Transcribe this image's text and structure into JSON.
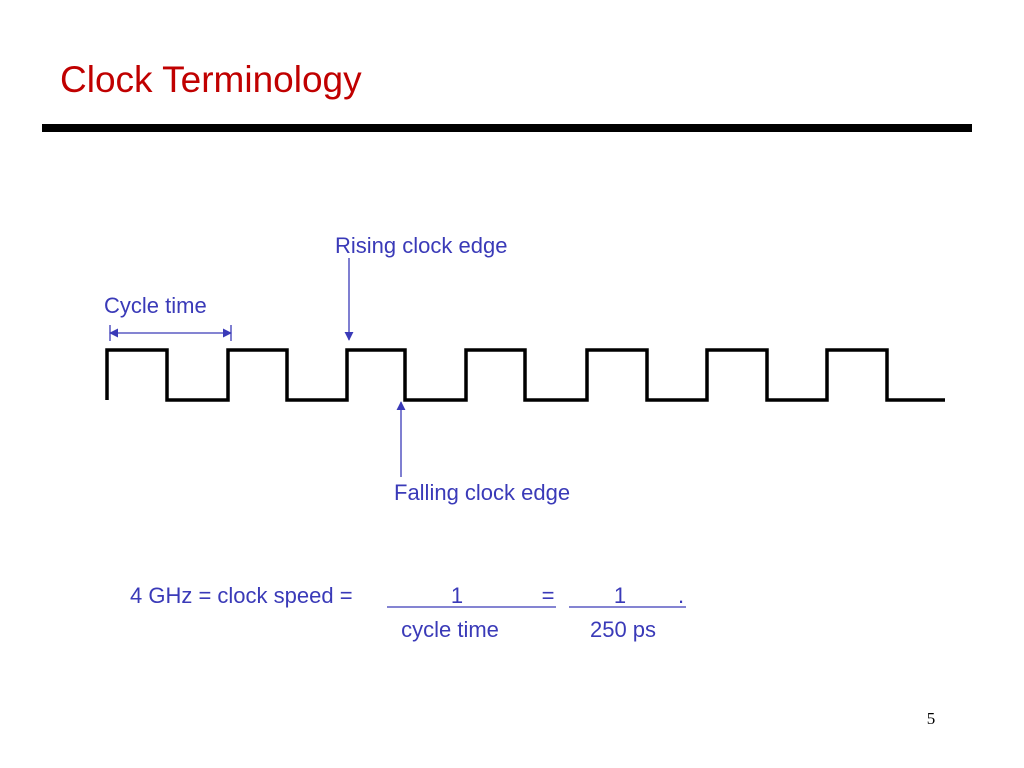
{
  "header": {
    "title": "Clock Terminology"
  },
  "diagram": {
    "rising_label": "Rising clock edge",
    "cycle_label": "Cycle time",
    "falling_label": "Falling clock edge"
  },
  "equation": {
    "lhs": "4 GHz = clock speed =",
    "numerator1": "1",
    "equals": "=",
    "denominator1": "cycle time",
    "numerator2": "1",
    "period": ".",
    "denominator2": "250 ps"
  },
  "footer": {
    "page_number": "5"
  }
}
